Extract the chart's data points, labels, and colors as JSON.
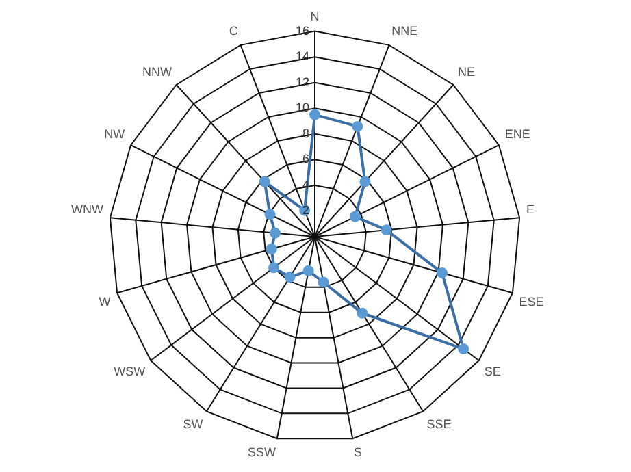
{
  "chart_data": {
    "type": "radar",
    "categories": [
      "N",
      "NNE",
      "NE",
      "ENE",
      "E",
      "ESE",
      "SE",
      "SSE",
      "S",
      "SSW",
      "SW",
      "WSW",
      "W",
      "WNW",
      "NW",
      "NNW",
      "C"
    ],
    "series": [
      {
        "color": "#3a6ea5",
        "values": [
          9.5,
          9.2,
          5.8,
          3.5,
          5.6,
          10.3,
          14.5,
          7.0,
          3.6,
          2.7,
          3.7,
          4.0,
          3.5,
          3.1,
          3.9,
          5.8,
          2.2
        ]
      }
    ],
    "ylim": [
      0,
      16
    ],
    "yticks": [
      2,
      4,
      6,
      8,
      10,
      12,
      14,
      16
    ],
    "grid": true,
    "legend": false,
    "marker": "circle",
    "line_style": "solid"
  }
}
